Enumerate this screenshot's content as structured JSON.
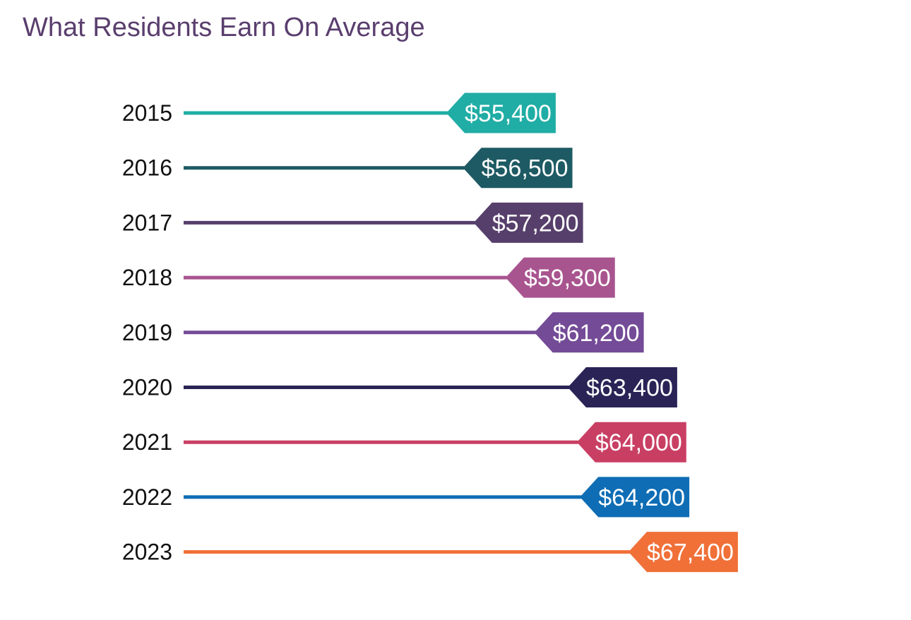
{
  "chart_data": {
    "type": "bar",
    "title": "What Residents Earn On Average",
    "xlabel": "",
    "ylabel": "",
    "categories": [
      "2015",
      "2016",
      "2017",
      "2018",
      "2019",
      "2020",
      "2021",
      "2022",
      "2023"
    ],
    "values": [
      55400,
      56500,
      57200,
      59300,
      61200,
      63400,
      64000,
      64200,
      67400
    ],
    "value_labels": [
      "$55,400",
      "$56,500",
      "$57,200",
      "$59,300",
      "$61,200",
      "$63,400",
      "$64,000",
      "$64,200",
      "$67,400"
    ],
    "colors": [
      "#20ada5",
      "#1e5a63",
      "#573f6b",
      "#a8548f",
      "#744b97",
      "#2a2356",
      "#c93f63",
      "#0e6db5",
      "#f07038"
    ],
    "grid": false
  }
}
